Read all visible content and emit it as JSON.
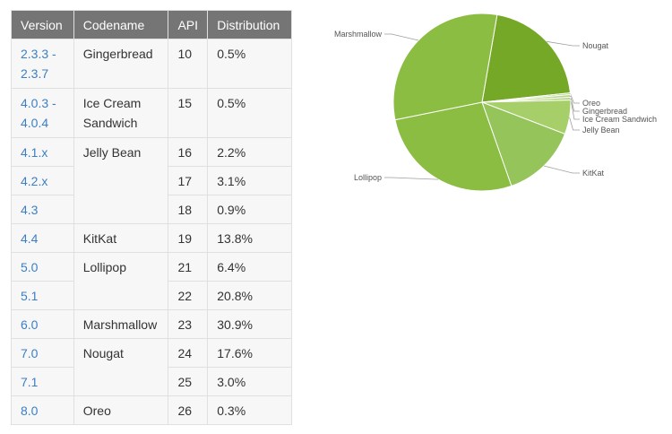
{
  "table": {
    "headers": [
      "Version",
      "Codename",
      "API",
      "Distribution"
    ],
    "groups": [
      {
        "codename": "Gingerbread",
        "rows": [
          {
            "version": "2.3.3 -\n2.3.7",
            "api": "10",
            "dist": "0.5%"
          }
        ]
      },
      {
        "codename": "Ice Cream\nSandwich",
        "rows": [
          {
            "version": "4.0.3 -\n4.0.4",
            "api": "15",
            "dist": "0.5%"
          }
        ]
      },
      {
        "codename": "Jelly Bean",
        "rows": [
          {
            "version": "4.1.x",
            "api": "16",
            "dist": "2.2%"
          },
          {
            "version": "4.2.x",
            "api": "17",
            "dist": "3.1%"
          },
          {
            "version": "4.3",
            "api": "18",
            "dist": "0.9%"
          }
        ]
      },
      {
        "codename": "KitKat",
        "rows": [
          {
            "version": "4.4",
            "api": "19",
            "dist": "13.8%"
          }
        ]
      },
      {
        "codename": "Lollipop",
        "rows": [
          {
            "version": "5.0",
            "api": "21",
            "dist": "6.4%"
          },
          {
            "version": "5.1",
            "api": "22",
            "dist": "20.8%"
          }
        ]
      },
      {
        "codename": "Marshmallow",
        "rows": [
          {
            "version": "6.0",
            "api": "23",
            "dist": "30.9%"
          }
        ]
      },
      {
        "codename": "Nougat",
        "rows": [
          {
            "version": "7.0",
            "api": "24",
            "dist": "17.6%"
          },
          {
            "version": "7.1",
            "api": "25",
            "dist": "3.0%"
          }
        ]
      },
      {
        "codename": "Oreo",
        "rows": [
          {
            "version": "8.0",
            "api": "26",
            "dist": "0.3%"
          }
        ]
      }
    ]
  },
  "chart_data": {
    "type": "pie",
    "title": "",
    "legend": "callout-labels",
    "slices": [
      {
        "label": "Nougat",
        "value": 20.6,
        "color": "#76a828"
      },
      {
        "label": "Oreo",
        "value": 0.3,
        "color": "#a7cc6c"
      },
      {
        "label": "Gingerbread",
        "value": 0.5,
        "color": "#bcd88f"
      },
      {
        "label": "Ice Cream Sandwich",
        "value": 0.5,
        "color": "#b3d27f"
      },
      {
        "label": "Jelly Bean",
        "value": 6.2,
        "color": "#a6cf6a"
      },
      {
        "label": "KitKat",
        "value": 13.8,
        "color": "#94c45a"
      },
      {
        "label": "Lollipop",
        "value": 27.2,
        "color": "#8cbd43"
      },
      {
        "label": "Marshmallow",
        "value": 30.9,
        "color": "#8cbd43"
      }
    ]
  }
}
